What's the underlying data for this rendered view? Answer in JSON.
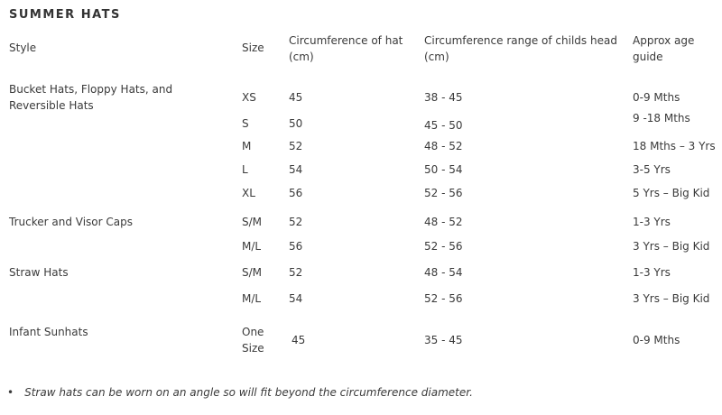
{
  "title": "SUMMER HATS",
  "headers": {
    "style": "Style",
    "size": "Size",
    "hat": "Circumference of hat (cm)",
    "range": "Circumference range of childs head (cm)",
    "age": "Approx age guide"
  },
  "rows": [
    {
      "style": "Bucket Hats, Floppy Hats, and Reversible Hats",
      "size": "XS",
      "hat": "45",
      "range": "38 - 45",
      "age": "0-9 Mths"
    },
    {
      "style": "",
      "size": "S",
      "hat": "50",
      "range": "45 - 50",
      "age": "9 -18 Mths"
    },
    {
      "style": "",
      "size": "M",
      "hat": "52",
      "range": "48 - 52",
      "age": "18 Mths – 3 Yrs"
    },
    {
      "style": "",
      "size": "L",
      "hat": "54",
      "range": "50 - 54",
      "age": "3-5 Yrs"
    },
    {
      "style": "",
      "size": "XL",
      "hat": "56",
      "range": "52 - 56",
      "age": "5 Yrs – Big Kid"
    },
    {
      "style": "Trucker and Visor Caps",
      "size": "S/M",
      "hat": "52",
      "range": "48 - 52",
      "age": "1-3 Yrs"
    },
    {
      "style": "",
      "size": "M/L",
      "hat": "56",
      "range": "52 - 56",
      "age": "3 Yrs – Big Kid"
    },
    {
      "style": "Straw Hats",
      "size": "S/M",
      "hat": "52",
      "range": "48 - 54",
      "age": "1-3 Yrs"
    },
    {
      "style": "",
      "size": "M/L",
      "hat": "54",
      "range": "52 - 56",
      "age": "3 Yrs – Big Kid"
    },
    {
      "style": "Infant Sunhats",
      "size": "One Size",
      "hat": "45",
      "range": "35 - 45",
      "age": "0-9 Mths"
    }
  ],
  "note": {
    "bullet": "•",
    "text": "Straw hats can be worn on an angle so will fit beyond the circumference diameter."
  }
}
